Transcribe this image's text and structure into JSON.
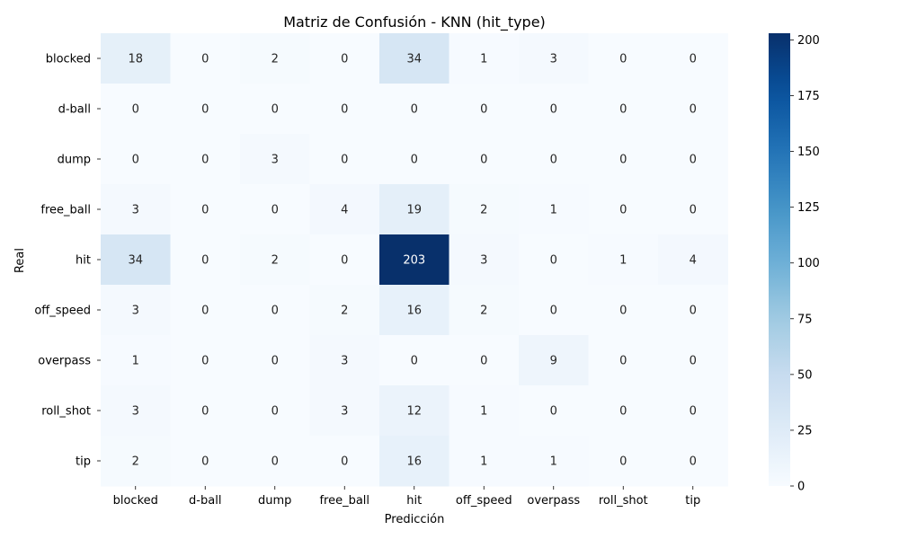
{
  "chart_data": {
    "type": "heatmap",
    "title": "Matriz de Confusión - KNN (hit_type)",
    "xlabel": "Predicción",
    "ylabel": "Real",
    "x_categories": [
      "blocked",
      "d-ball",
      "dump",
      "free_ball",
      "hit",
      "off_speed",
      "overpass",
      "roll_shot",
      "tip"
    ],
    "y_categories": [
      "blocked",
      "d-ball",
      "dump",
      "free_ball",
      "hit",
      "off_speed",
      "overpass",
      "roll_shot",
      "tip"
    ],
    "values": [
      [
        18,
        0,
        2,
        0,
        34,
        1,
        3,
        0,
        0
      ],
      [
        0,
        0,
        0,
        0,
        0,
        0,
        0,
        0,
        0
      ],
      [
        0,
        0,
        3,
        0,
        0,
        0,
        0,
        0,
        0
      ],
      [
        3,
        0,
        0,
        4,
        19,
        2,
        1,
        0,
        0
      ],
      [
        34,
        0,
        2,
        0,
        203,
        3,
        0,
        1,
        4
      ],
      [
        3,
        0,
        0,
        2,
        16,
        2,
        0,
        0,
        0
      ],
      [
        1,
        0,
        0,
        3,
        0,
        0,
        9,
        0,
        0
      ],
      [
        3,
        0,
        0,
        3,
        12,
        1,
        0,
        0,
        0
      ],
      [
        2,
        0,
        0,
        0,
        16,
        1,
        1,
        0,
        0
      ]
    ],
    "colormap": "Blues",
    "colorbar": {
      "range": [
        0,
        203
      ],
      "ticks": [
        0,
        25,
        50,
        75,
        100,
        125,
        150,
        175,
        200
      ]
    },
    "grid": false
  }
}
